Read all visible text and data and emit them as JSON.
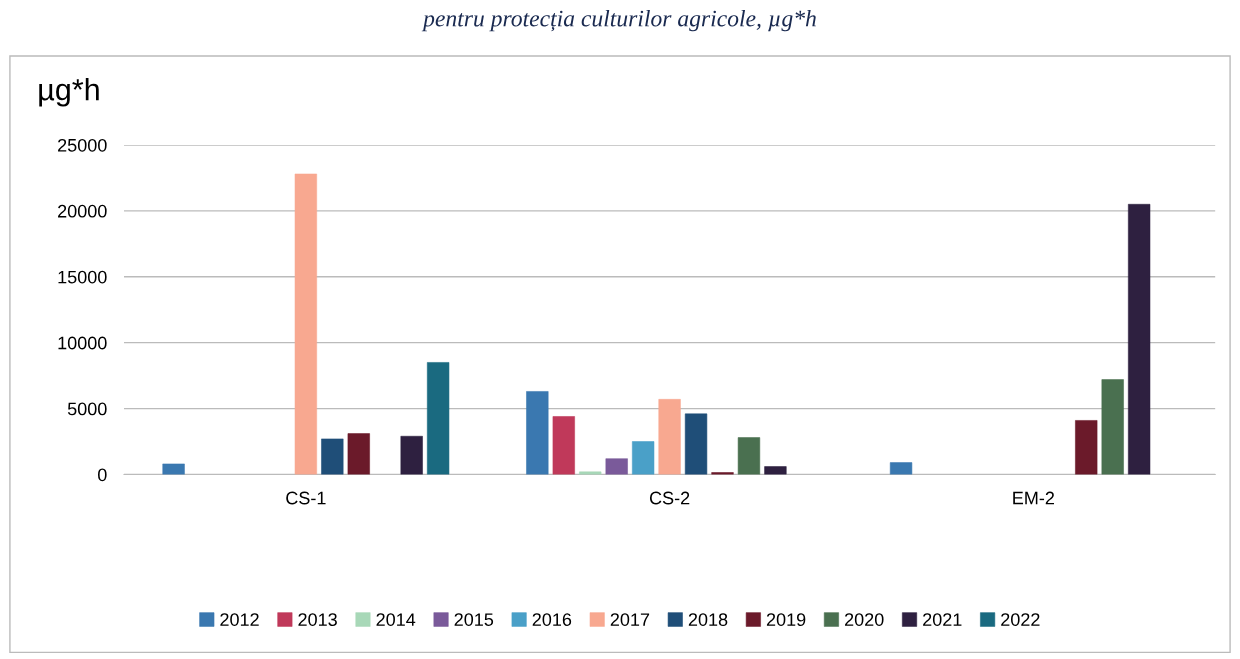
{
  "chart_data": {
    "type": "bar",
    "title": "pentru protecția culturilor agricole, µg*h",
    "ylabel": "µg*h",
    "categories": [
      "CS-1",
      "CS-2",
      "EM-2"
    ],
    "series": [
      {
        "name": "2012",
        "color": "#3a78b0",
        "values": [
          800,
          6300,
          900
        ]
      },
      {
        "name": "2013",
        "color": "#c0395a",
        "values": [
          null,
          4400,
          null
        ]
      },
      {
        "name": "2014",
        "color": "#a8d8b8",
        "values": [
          null,
          200,
          null
        ]
      },
      {
        "name": "2015",
        "color": "#7a5a9a",
        "values": [
          null,
          1200,
          null
        ]
      },
      {
        "name": "2016",
        "color": "#4aa0c8",
        "values": [
          null,
          2500,
          null
        ]
      },
      {
        "name": "2017",
        "color": "#f8a890",
        "values": [
          22800,
          5700,
          null
        ]
      },
      {
        "name": "2018",
        "color": "#1f4e78",
        "values": [
          2700,
          4600,
          null
        ]
      },
      {
        "name": "2019",
        "color": "#6b1a2a",
        "values": [
          3100,
          150,
          4100
        ]
      },
      {
        "name": "2020",
        "color": "#4a7050",
        "values": [
          null,
          2800,
          7200
        ]
      },
      {
        "name": "2021",
        "color": "#2e2040",
        "values": [
          2900,
          600,
          20500
        ]
      },
      {
        "name": "2022",
        "color": "#1a6a80",
        "values": [
          8500,
          null,
          null
        ]
      }
    ],
    "ylim": [
      0,
      25000
    ],
    "yticks": [
      0,
      5000,
      10000,
      15000,
      20000,
      25000
    ],
    "grid": "y",
    "legend": "bottom"
  }
}
